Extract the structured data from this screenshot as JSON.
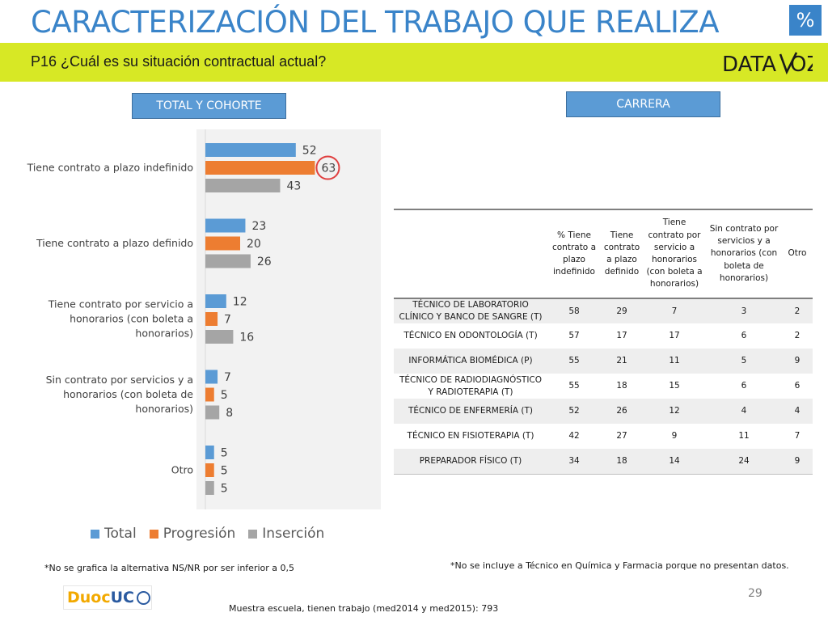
{
  "header": {
    "title": "CARACTERIZACIÓN DEL TRABAJO QUE REALIZA",
    "badge": "%",
    "question": "P16 ¿Cuál es su situación contractual actual?",
    "brand_logo": "DATAVOZ"
  },
  "buttons": {
    "total": "TOTAL Y COHORTE",
    "carrera": "CARRERA"
  },
  "colors": {
    "title": "#3a84c9",
    "question_bar": "#d7e825",
    "total": "#5b9bd5",
    "progresion": "#ed7d31",
    "insercion": "#a5a5a5",
    "highlight_circle": "#e04040"
  },
  "chart_data": {
    "type": "bar",
    "orientation": "horizontal",
    "categories": [
      "Tiene contrato a plazo indefinido",
      "Tiene contrato a plazo definido",
      "Tiene contrato por servicio a honorarios (con boleta a honorarios)",
      "Sin contrato por servicios y a honorarios (con boleta de honorarios)",
      "Otro"
    ],
    "category_lines": [
      [
        "Tiene contrato a plazo indefinido"
      ],
      [
        "Tiene contrato a plazo definido"
      ],
      [
        "Tiene contrato por servicio a",
        "honorarios (con boleta a",
        "honorarios)"
      ],
      [
        "Sin contrato por servicios y a",
        "honorarios (con boleta de",
        "honorarios)"
      ],
      [
        "Otro"
      ]
    ],
    "series": [
      {
        "name": "Total",
        "color": "#5b9bd5",
        "values": [
          52,
          23,
          12,
          7,
          5
        ]
      },
      {
        "name": "Progresión",
        "color": "#ed7d31",
        "values": [
          63,
          20,
          7,
          5,
          5
        ]
      },
      {
        "name": "Insercion",
        "color": "#a5a5a5",
        "values": [
          43,
          26,
          16,
          8,
          5
        ]
      }
    ],
    "legend": [
      "Total",
      "Progresión",
      "Inserción"
    ],
    "legend_position": "bottom",
    "highlighted": {
      "category_index": 0,
      "series_index": 1
    },
    "xlim": [
      0,
      100
    ],
    "grid": false
  },
  "table": {
    "headers": [
      "",
      "% Tiene contrato a plazo indefinido",
      "Tiene contrato a plazo definido",
      "Tiene contrato por servicio a honorarios (con boleta a honorarios)",
      "Sin contrato por servicios y a honorarios (con boleta de honorarios)",
      "Otro"
    ],
    "rows": [
      {
        "label": "TÉCNICO DE LABORATORIO CLÍNICO Y BANCO DE SANGRE (T)",
        "values": [
          "58",
          "29",
          "7",
          "3",
          "2"
        ]
      },
      {
        "label": "TÉCNICO EN ODONTOLOGÍA (T)",
        "values": [
          "57",
          "17",
          "17",
          "6",
          "2"
        ]
      },
      {
        "label": "INFORMÁTICA BIOMÉDICA (P)",
        "values": [
          "55",
          "21",
          "11",
          "5",
          "9"
        ]
      },
      {
        "label": "TÉCNICO DE RADIODIAGNÓSTICO Y RADIOTERAPIA (T)",
        "values": [
          "55",
          "18",
          "15",
          "6",
          "6"
        ]
      },
      {
        "label": "TÉCNICO DE ENFERMERÍA (T)",
        "values": [
          "52",
          "26",
          "12",
          "4",
          "4"
        ]
      },
      {
        "label": "TÉCNICO EN FISIOTERAPIA (T)",
        "values": [
          "42",
          "27",
          "9",
          "11",
          "7"
        ]
      },
      {
        "label": "PREPARADOR FÍSICO (T)",
        "values": [
          "34",
          "18",
          "14",
          "24",
          "9"
        ]
      }
    ]
  },
  "footnotes": {
    "left": "*No se grafica la alternativa NS/NR por ser inferior a 0,5",
    "right": "*No se incluye a  Técnico en Química y Farmacia porque no presentan datos.",
    "bottom": "Muestra escuela, tienen trabajo (med2014 y med2015): 793"
  },
  "page_number": "29",
  "duoc_logo": {
    "part1": "Duoc",
    "part2": "UC"
  }
}
